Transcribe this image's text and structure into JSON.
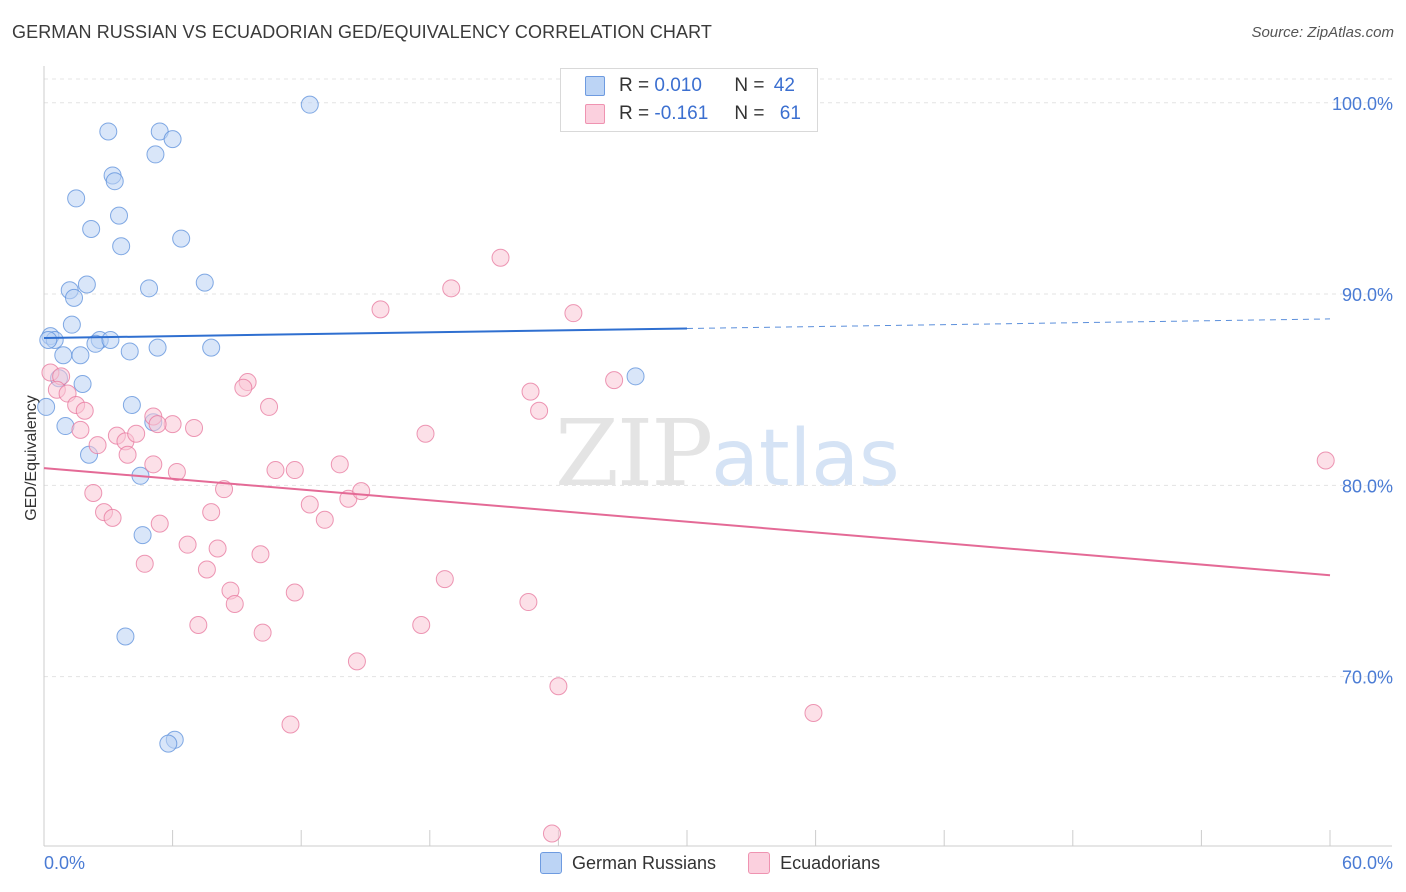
{
  "header": {
    "title": "GERMAN RUSSIAN VS ECUADORIAN GED/EQUIVALENCY CORRELATION CHART",
    "source": "Source: ZipAtlas.com"
  },
  "legend": {
    "rows": [
      {
        "r_label": "R =",
        "r_value": "0.010",
        "n_label": "N =",
        "n_value": "42",
        "color": "#8ab4ef"
      },
      {
        "r_label": "R =",
        "r_value": "-0.161",
        "n_label": "N =",
        "n_value": "61",
        "color": "#f5a9c1"
      }
    ],
    "bottom": [
      {
        "label": "German Russians",
        "color": "#8ab4ef"
      },
      {
        "label": "Ecuadorians",
        "color": "#f5a9c1"
      }
    ]
  },
  "watermark": {
    "zip": "ZIP",
    "atlas": "atlas"
  },
  "chart_data": {
    "type": "scatter",
    "title": "GERMAN RUSSIAN VS ECUADORIAN GED/EQUIVALENCY CORRELATION CHART",
    "xlabel": "",
    "ylabel": "GED/Equivalency",
    "xlim": [
      0,
      60
    ],
    "ylim": [
      60,
      102
    ],
    "x_tick_labels": [
      {
        "x": 0,
        "label": "0.0%"
      },
      {
        "x": 60,
        "label": "60.0%"
      }
    ],
    "y_tick_labels": [
      {
        "y": 100,
        "label": "100.0%"
      },
      {
        "y": 90,
        "label": "90.0%"
      },
      {
        "y": 80,
        "label": "80.0%"
      },
      {
        "y": 70,
        "label": "70.0%"
      }
    ],
    "grid": true,
    "series": [
      {
        "name": "German Russians",
        "color": "#5b8fdb",
        "fill": "#b9d2f4",
        "r": 0.01,
        "n": 42,
        "trend": {
          "x0": 0,
          "y0": 87.7,
          "x1": 30,
          "y1": 88.2,
          "x_dash_end": 60,
          "y_dash_end": 88.7
        },
        "points": [
          [
            12.4,
            99.9
          ],
          [
            3.0,
            98.5
          ],
          [
            5.4,
            98.5
          ],
          [
            6.0,
            98.1
          ],
          [
            5.2,
            97.3
          ],
          [
            3.2,
            96.2
          ],
          [
            3.3,
            95.9
          ],
          [
            1.5,
            95.0
          ],
          [
            3.5,
            94.1
          ],
          [
            2.2,
            93.4
          ],
          [
            6.4,
            92.9
          ],
          [
            3.6,
            92.5
          ],
          [
            2.0,
            90.5
          ],
          [
            1.2,
            90.2
          ],
          [
            4.9,
            90.3
          ],
          [
            7.5,
            90.6
          ],
          [
            1.4,
            89.8
          ],
          [
            1.3,
            88.4
          ],
          [
            0.3,
            87.8
          ],
          [
            0.5,
            87.6
          ],
          [
            2.6,
            87.6
          ],
          [
            2.4,
            87.4
          ],
          [
            3.1,
            87.6
          ],
          [
            0.9,
            86.8
          ],
          [
            1.7,
            86.8
          ],
          [
            4.0,
            87.0
          ],
          [
            5.3,
            87.2
          ],
          [
            7.8,
            87.2
          ],
          [
            0.7,
            85.6
          ],
          [
            1.8,
            85.3
          ],
          [
            27.6,
            85.7
          ],
          [
            0.1,
            84.1
          ],
          [
            4.1,
            84.2
          ],
          [
            5.1,
            83.3
          ],
          [
            1.0,
            83.1
          ],
          [
            2.1,
            81.6
          ],
          [
            4.5,
            80.5
          ],
          [
            4.6,
            77.4
          ],
          [
            3.8,
            72.1
          ],
          [
            6.1,
            66.7
          ],
          [
            5.8,
            66.5
          ],
          [
            0.2,
            87.6
          ]
        ]
      },
      {
        "name": "Ecuadorians",
        "color": "#e7759c",
        "fill": "#f9c6d6",
        "r": -0.161,
        "n": 61,
        "trend": {
          "x0": 0,
          "y0": 80.9,
          "x1": 60,
          "y1": 75.3
        },
        "points": [
          [
            21.3,
            91.9
          ],
          [
            19.0,
            90.3
          ],
          [
            15.7,
            89.2
          ],
          [
            24.7,
            89.0
          ],
          [
            26.6,
            85.5
          ],
          [
            0.3,
            85.9
          ],
          [
            0.8,
            85.7
          ],
          [
            0.6,
            85.0
          ],
          [
            1.1,
            84.8
          ],
          [
            9.5,
            85.4
          ],
          [
            9.3,
            85.1
          ],
          [
            22.7,
            84.9
          ],
          [
            23.1,
            83.9
          ],
          [
            1.5,
            84.2
          ],
          [
            1.9,
            83.9
          ],
          [
            10.5,
            84.1
          ],
          [
            5.1,
            83.6
          ],
          [
            6.0,
            83.2
          ],
          [
            5.3,
            83.2
          ],
          [
            7.0,
            83.0
          ],
          [
            1.7,
            82.9
          ],
          [
            3.4,
            82.6
          ],
          [
            3.8,
            82.3
          ],
          [
            4.3,
            82.7
          ],
          [
            17.8,
            82.7
          ],
          [
            2.5,
            82.1
          ],
          [
            3.9,
            81.6
          ],
          [
            5.1,
            81.1
          ],
          [
            6.2,
            80.7
          ],
          [
            10.8,
            80.8
          ],
          [
            11.7,
            80.8
          ],
          [
            13.8,
            81.1
          ],
          [
            2.3,
            79.6
          ],
          [
            8.4,
            79.8
          ],
          [
            14.2,
            79.3
          ],
          [
            14.8,
            79.7
          ],
          [
            12.4,
            79.0
          ],
          [
            13.1,
            78.2
          ],
          [
            2.8,
            78.6
          ],
          [
            3.2,
            78.3
          ],
          [
            7.8,
            78.6
          ],
          [
            5.4,
            78.0
          ],
          [
            6.7,
            76.9
          ],
          [
            8.1,
            76.7
          ],
          [
            10.1,
            76.4
          ],
          [
            4.7,
            75.9
          ],
          [
            7.6,
            75.6
          ],
          [
            18.7,
            75.1
          ],
          [
            8.7,
            74.5
          ],
          [
            11.7,
            74.4
          ],
          [
            8.9,
            73.8
          ],
          [
            22.6,
            73.9
          ],
          [
            7.2,
            72.7
          ],
          [
            10.2,
            72.3
          ],
          [
            17.6,
            72.7
          ],
          [
            14.6,
            70.8
          ],
          [
            24.0,
            69.5
          ],
          [
            11.5,
            67.5
          ],
          [
            35.9,
            68.1
          ],
          [
            59.8,
            81.3
          ],
          [
            23.7,
            61.8
          ]
        ]
      }
    ]
  }
}
